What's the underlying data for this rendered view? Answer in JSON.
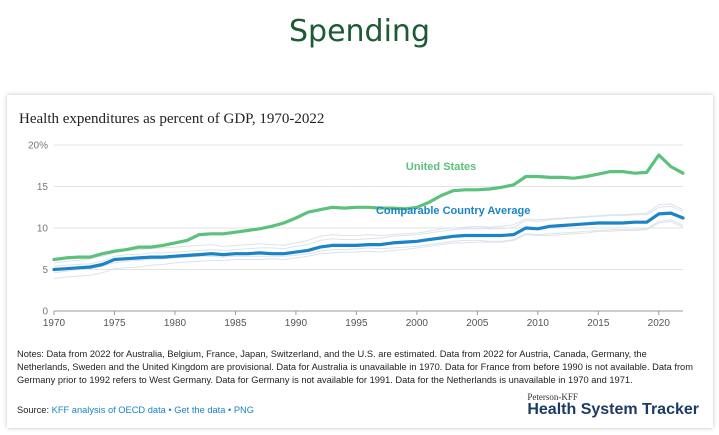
{
  "slide": {
    "title": "Spending"
  },
  "chart_data": {
    "type": "line",
    "title": "Health expenditures as percent of GDP, 1970-2022",
    "xlabel": "",
    "ylabel": "",
    "xlim": [
      1970,
      2022
    ],
    "ylim": [
      0,
      20
    ],
    "x_ticks": [
      1970,
      1975,
      1980,
      1985,
      1990,
      1995,
      2000,
      2005,
      2010,
      2015,
      2020
    ],
    "y_ticks": [
      0,
      5,
      10,
      15,
      20
    ],
    "y_tick_labels": [
      "0",
      "5",
      "10",
      "15",
      "20%"
    ],
    "grid": true,
    "x": [
      1970,
      1971,
      1972,
      1973,
      1974,
      1975,
      1976,
      1977,
      1978,
      1979,
      1980,
      1981,
      1982,
      1983,
      1984,
      1985,
      1986,
      1987,
      1988,
      1989,
      1990,
      1991,
      1992,
      1993,
      1994,
      1995,
      1996,
      1997,
      1998,
      1999,
      2000,
      2001,
      2002,
      2003,
      2004,
      2005,
      2006,
      2007,
      2008,
      2009,
      2010,
      2011,
      2012,
      2013,
      2014,
      2015,
      2016,
      2017,
      2018,
      2019,
      2020,
      2021,
      2022
    ],
    "series": [
      {
        "name": "United States",
        "color": "#5cc17a",
        "values": [
          6.2,
          6.4,
          6.5,
          6.5,
          6.9,
          7.2,
          7.4,
          7.7,
          7.7,
          7.9,
          8.2,
          8.5,
          9.2,
          9.3,
          9.3,
          9.5,
          9.7,
          9.9,
          10.2,
          10.6,
          11.2,
          11.9,
          12.2,
          12.5,
          12.4,
          12.5,
          12.5,
          12.4,
          12.4,
          12.3,
          12.5,
          13.1,
          13.9,
          14.5,
          14.6,
          14.6,
          14.7,
          14.9,
          15.2,
          16.2,
          16.2,
          16.1,
          16.1,
          16.0,
          16.2,
          16.5,
          16.8,
          16.8,
          16.6,
          16.7,
          18.8,
          17.4,
          16.6
        ]
      },
      {
        "name": "Comparable Country Average",
        "color": "#1a84c7",
        "values": [
          5.0,
          5.1,
          5.2,
          5.3,
          5.6,
          6.2,
          6.3,
          6.4,
          6.5,
          6.5,
          6.6,
          6.7,
          6.8,
          6.9,
          6.8,
          6.9,
          6.9,
          7.0,
          6.9,
          6.9,
          7.1,
          7.3,
          7.7,
          7.9,
          7.9,
          7.9,
          8.0,
          8.0,
          8.2,
          8.3,
          8.4,
          8.6,
          8.8,
          9.0,
          9.1,
          9.1,
          9.1,
          9.1,
          9.2,
          10.0,
          9.9,
          10.2,
          10.3,
          10.4,
          10.5,
          10.6,
          10.6,
          10.6,
          10.7,
          10.7,
          11.7,
          11.8,
          11.2
        ]
      }
    ],
    "annotations": [
      {
        "text": "United States",
        "color": "#5cc17a"
      },
      {
        "text": "Comparable Country Average",
        "color": "#1a84c7"
      }
    ],
    "background_lines": [
      [
        4.6,
        4.8,
        5.0,
        5.1,
        5.4,
        5.8,
        6.0,
        6.1,
        6.2,
        6.3,
        6.4,
        6.5,
        6.6,
        6.6,
        6.5,
        6.6,
        6.6,
        6.6,
        6.6,
        6.6,
        6.7,
        6.9,
        7.2,
        7.4,
        7.4,
        7.5,
        7.6,
        7.5,
        7.6,
        7.7,
        7.8,
        8.0,
        8.2,
        8.4,
        8.5,
        8.5,
        8.4,
        8.4,
        8.6,
        9.3,
        9.2,
        9.3,
        9.4,
        9.5,
        9.6,
        9.7,
        9.8,
        9.8,
        9.8,
        9.9,
        10.8,
        11.0,
        10.3
      ],
      [
        5.4,
        5.5,
        5.6,
        5.7,
        6.0,
        6.6,
        6.8,
        6.8,
        7.0,
        7.0,
        7.1,
        7.2,
        7.3,
        7.4,
        7.3,
        7.4,
        7.5,
        7.6,
        7.6,
        7.5,
        7.8,
        8.0,
        8.5,
        8.7,
        8.6,
        8.6,
        8.7,
        8.8,
        9.0,
        9.1,
        9.2,
        9.4,
        9.6,
        9.8,
        9.9,
        9.9,
        9.9,
        9.9,
        10.1,
        10.9,
        10.8,
        11.0,
        11.1,
        11.2,
        11.3,
        11.4,
        11.5,
        11.5,
        11.6,
        11.6,
        12.5,
        12.6,
        12.0
      ],
      [
        3.9,
        4.1,
        4.2,
        4.3,
        4.6,
        5.1,
        5.2,
        5.3,
        5.5,
        5.6,
        5.8,
        5.9,
        6.0,
        6.1,
        6.1,
        6.2,
        6.2,
        6.2,
        6.3,
        6.2,
        6.4,
        6.6,
        6.9,
        7.0,
        7.1,
        7.1,
        7.2,
        7.1,
        7.3,
        7.4,
        7.6,
        7.8,
        8.0,
        8.2,
        8.2,
        8.3,
        8.3,
        8.3,
        8.5,
        9.2,
        9.1,
        9.1,
        9.2,
        9.3,
        9.4,
        9.6,
        9.6,
        9.7,
        9.7,
        9.8,
        10.6,
        10.8,
        10.1
      ],
      [
        5.8,
        6.0,
        6.1,
        6.3,
        6.6,
        7.0,
        7.3,
        7.4,
        7.5,
        7.6,
        7.7,
        7.8,
        7.9,
        8.0,
        7.8,
        7.9,
        8.0,
        8.1,
        8.0,
        7.9,
        8.2,
        8.5,
        9.0,
        9.2,
        9.1,
        9.1,
        9.2,
        9.1,
        9.2,
        9.3,
        9.4,
        9.6,
        9.9,
        10.0,
        10.1,
        10.2,
        10.1,
        10.2,
        10.4,
        11.1,
        11.0,
        11.1,
        11.2,
        11.3,
        11.4,
        11.5,
        11.6,
        11.6,
        11.7,
        11.8,
        12.8,
        12.9,
        12.2
      ]
    ]
  },
  "notes": {
    "text": "Notes: Data from 2022 for Australia, Belgium, France, Japan, Switzerland, and the U.S. are estimated. Data from 2022 for Austria, Canada, Germany, the Netherlands, Sweden and the United Kingdom are provisional. Data for Australia is unavailable in 1970. Data for France from before 1990 is not available.  Data from Germany prior to 1992 refers to West Germany. Data for Germany is not available for 1991. Data for the Netherlands is unavailable in 1970 and 1971."
  },
  "source": {
    "label": "Source:",
    "link1": "KFF analysis of OECD data",
    "sep1": " • ",
    "link2": "Get the data",
    "sep2": " • ",
    "link3": "PNG"
  },
  "brand": {
    "small": "Peterson-KFF",
    "big": "Health System Tracker"
  }
}
